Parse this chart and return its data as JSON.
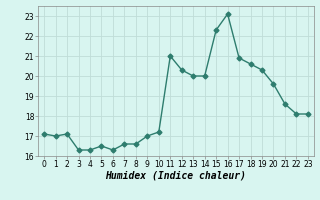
{
  "x": [
    0,
    1,
    2,
    3,
    4,
    5,
    6,
    7,
    8,
    9,
    10,
    11,
    12,
    13,
    14,
    15,
    16,
    17,
    18,
    19,
    20,
    21,
    22,
    23
  ],
  "y": [
    17.1,
    17.0,
    17.1,
    16.3,
    16.3,
    16.5,
    16.3,
    16.6,
    16.6,
    17.0,
    17.2,
    21.0,
    20.3,
    20.0,
    20.0,
    22.3,
    23.1,
    20.9,
    20.6,
    20.3,
    19.6,
    18.6,
    18.1,
    18.1
  ],
  "line_color": "#2e7d6e",
  "marker": "D",
  "marker_size": 2.5,
  "bg_color": "#d8f5f0",
  "grid_color": "#c0ddd8",
  "xlabel": "Humidex (Indice chaleur)",
  "ylim": [
    16,
    23.5
  ],
  "xlim": [
    -0.5,
    23.5
  ],
  "yticks": [
    16,
    17,
    18,
    19,
    20,
    21,
    22,
    23
  ],
  "xticks": [
    0,
    1,
    2,
    3,
    4,
    5,
    6,
    7,
    8,
    9,
    10,
    11,
    12,
    13,
    14,
    15,
    16,
    17,
    18,
    19,
    20,
    21,
    22,
    23
  ],
  "tick_fontsize": 5.5,
  "xlabel_fontsize": 7,
  "line_width": 1.0
}
